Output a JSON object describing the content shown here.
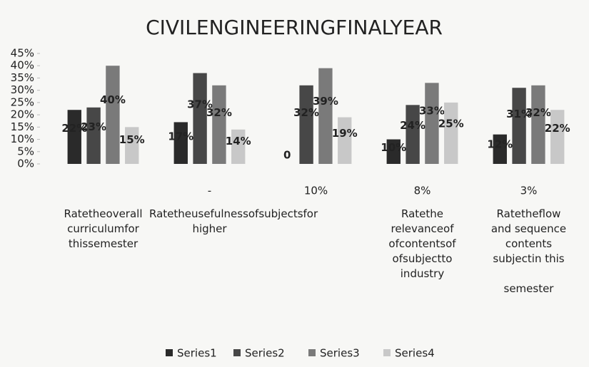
{
  "chart_data": {
    "type": "bar",
    "title": "CIVILENGINEERINGFINALYEAR",
    "categories": [
      "Ratetheoverall\ncurriculumfor\nthissemester",
      "Ratetheusefulnessofsubjectsfor\nhigher",
      null,
      "Ratethe\nrelevanceof\nofcontentsof\nofsubjectto\nindustry",
      "Ratetheflow\nand sequence\ncontents\nsubjectin this\n\nsemester"
    ],
    "notes": [
      null,
      "-",
      "10%",
      "8%",
      "3%"
    ],
    "series": [
      {
        "name": "Series1",
        "color": "#2a2a2a",
        "values": [
          22,
          17,
          0,
          10,
          12
        ],
        "value_labels": [
          "22%",
          "17%",
          "0",
          "10%",
          "12%"
        ]
      },
      {
        "name": "Series2",
        "color": "#474747",
        "values": [
          23,
          37,
          32,
          24,
          31
        ],
        "value_labels": [
          "23%",
          "37%",
          "32%",
          "24%",
          "31%"
        ]
      },
      {
        "name": "Series3",
        "color": "#7a7a7a",
        "values": [
          40,
          32,
          39,
          33,
          32
        ],
        "value_labels": [
          "40%",
          "32%",
          "39%",
          "33%",
          "32%"
        ]
      },
      {
        "name": "Series4",
        "color": "#c8c8c8",
        "values": [
          15,
          14,
          19,
          25,
          22
        ],
        "value_labels": [
          "15%",
          "14%",
          "19%",
          "25%",
          "22%"
        ]
      }
    ],
    "ylim": [
      0,
      45
    ],
    "yticks": [
      {
        "value": 0,
        "label": "0%"
      },
      {
        "value": 5,
        "label": "5%"
      },
      {
        "value": 10,
        "label": "10%"
      },
      {
        "value": 15,
        "label": "15%"
      },
      {
        "value": 20,
        "label": "20%"
      },
      {
        "value": 25,
        "label": "25%"
      },
      {
        "value": 30,
        "label": "30%"
      },
      {
        "value": 35,
        "label": "35%"
      },
      {
        "value": 40,
        "label": "40%"
      },
      {
        "value": 45,
        "label": "45%"
      }
    ],
    "grid": false,
    "legend": "bottom"
  }
}
